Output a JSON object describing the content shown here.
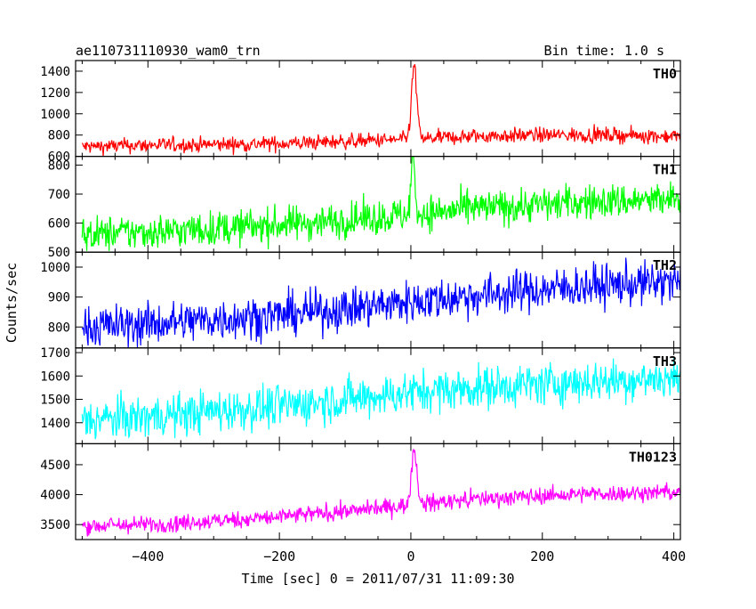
{
  "header": {
    "title": "ae110731110930_wam0_trn",
    "bin_time": "Bin time: 1.0 s"
  },
  "axes": {
    "ylabel": "Counts/sec",
    "xlabel": "Time [sec] 0 = 2011/07/31 11:09:30"
  },
  "chart_data": {
    "type": "line",
    "x_range": [
      -510,
      410
    ],
    "x_ticks": [
      -400,
      -200,
      0,
      200,
      400
    ],
    "x_tick_labels": [
      "−400",
      "−200",
      "0",
      "200",
      "400"
    ],
    "grid": false,
    "panels": [
      {
        "label": "TH0",
        "color": "#ff0000",
        "ylim": [
          600,
          1500
        ],
        "yticks": [
          600,
          800,
          1000,
          1200,
          1400
        ],
        "trend": {
          "x": [
            -500,
            -400,
            -300,
            -200,
            -100,
            0,
            100,
            200,
            300,
            400
          ],
          "y": [
            690,
            705,
            710,
            720,
            740,
            760,
            790,
            800,
            800,
            790
          ]
        },
        "noise": 35,
        "spike": {
          "x": 5,
          "peak": 1500,
          "width": 4
        }
      },
      {
        "label": "TH1",
        "color": "#00ff00",
        "ylim": [
          500,
          830
        ],
        "yticks": [
          500,
          600,
          700,
          800
        ],
        "trend": {
          "x": [
            -500,
            -400,
            -300,
            -200,
            -100,
            0,
            100,
            200,
            300,
            400
          ],
          "y": [
            560,
            570,
            580,
            595,
            610,
            630,
            650,
            665,
            675,
            680
          ]
        },
        "noise": 30,
        "spike": {
          "x": 3,
          "peak": 830,
          "width": 3
        }
      },
      {
        "label": "TH2",
        "color": "#0000ff",
        "ylim": [
          730,
          1050
        ],
        "yticks": [
          800,
          900,
          1000
        ],
        "trend": {
          "x": [
            -500,
            -400,
            -300,
            -200,
            -100,
            0,
            100,
            200,
            300,
            400
          ],
          "y": [
            800,
            810,
            825,
            840,
            860,
            885,
            905,
            925,
            940,
            950
          ]
        },
        "noise": 35,
        "spike": null
      },
      {
        "label": "TH3",
        "color": "#00ffff",
        "ylim": [
          1310,
          1720
        ],
        "yticks": [
          1400,
          1500,
          1600,
          1700
        ],
        "trend": {
          "x": [
            -500,
            -400,
            -300,
            -200,
            -100,
            0,
            100,
            200,
            300,
            400
          ],
          "y": [
            1410,
            1425,
            1450,
            1470,
            1500,
            1530,
            1550,
            1565,
            1580,
            1590
          ]
        },
        "noise": 45,
        "spike": null
      },
      {
        "label": "TH0123",
        "color": "#ff00ff",
        "ylim": [
          3250,
          4850
        ],
        "yticks": [
          3500,
          4000,
          4500
        ],
        "trend": {
          "x": [
            -500,
            -400,
            -300,
            -200,
            -100,
            0,
            100,
            200,
            300,
            400
          ],
          "y": [
            3480,
            3500,
            3560,
            3630,
            3720,
            3830,
            3930,
            3980,
            4020,
            4040
          ]
        },
        "noise": 70,
        "spike": {
          "x": 5,
          "peak": 4850,
          "width": 4
        }
      }
    ]
  }
}
